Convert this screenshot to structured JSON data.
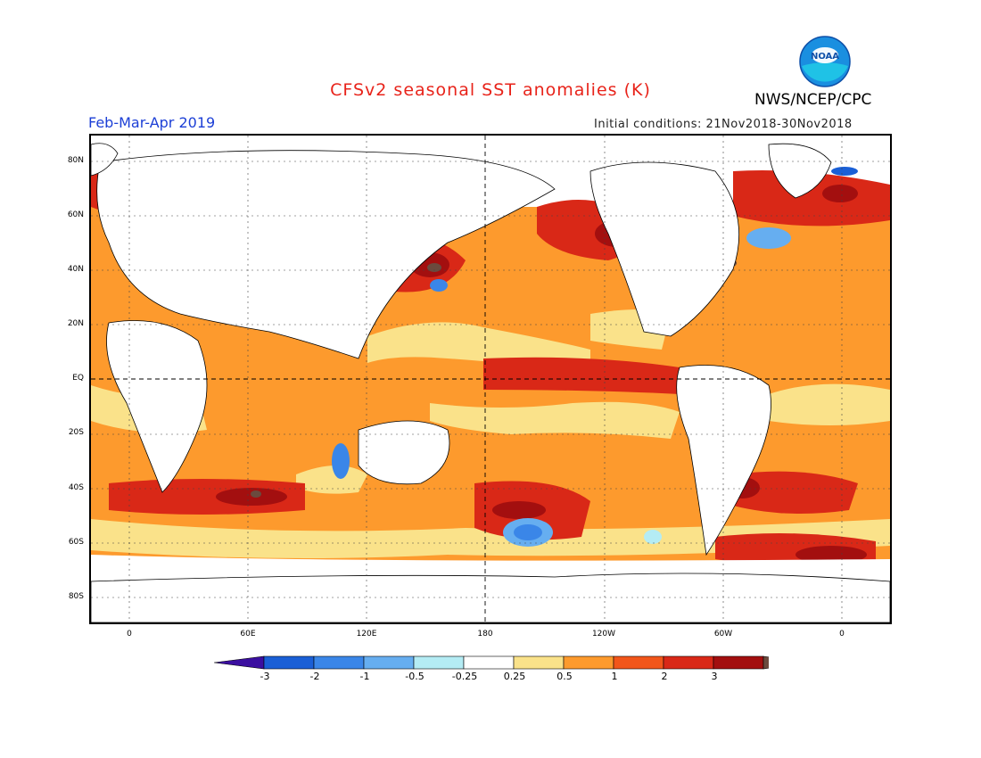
{
  "header": {
    "title": "CFSv2 seasonal SST anomalies (K)",
    "agency": "NWS/NCEP/CPC",
    "period": "Feb-Mar-Apr 2019",
    "initial_conditions": "Initial conditions: 21Nov2018-30Nov2018",
    "logo_text": "NOAA"
  },
  "axes": {
    "lat_labels": [
      "80N",
      "60N",
      "40N",
      "20N",
      "EQ",
      "20S",
      "40S",
      "60S",
      "80S"
    ],
    "lon_labels": [
      "0",
      "60E",
      "120E",
      "180",
      "120W",
      "60W",
      "0"
    ]
  },
  "colorbar": {
    "labels": [
      "-3",
      "-2",
      "-1",
      "-0.5",
      "-0.25",
      "0.25",
      "0.5",
      "1",
      "2",
      "3"
    ],
    "colors": [
      "#3b0fa0",
      "#1a5fd6",
      "#3a86e8",
      "#66aef0",
      "#b4ecf4",
      "#ffffff",
      "#fae28a",
      "#fd9a2d",
      "#f2561a",
      "#d92817",
      "#a30f0f",
      "#6b4a3e"
    ]
  },
  "colors": {
    "title": "#e8231a",
    "period": "#1c3fd6",
    "warm1": "#fae28a",
    "warm2": "#fd9a2d",
    "warm3": "#f2561a",
    "warm4": "#d92817",
    "warm5": "#a30f0f",
    "cool1": "#66aef0",
    "cool2": "#3a86e8",
    "cool3": "#1a5fd6"
  }
}
